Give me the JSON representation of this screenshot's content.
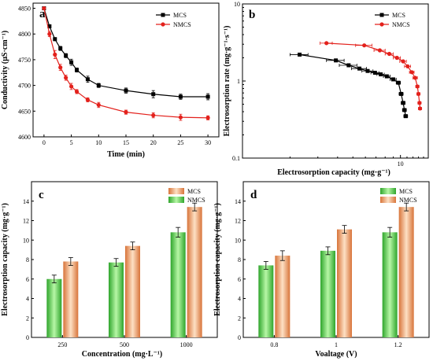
{
  "colors": {
    "mcs": "#000000",
    "nmcs": "#e3211c",
    "green_dark": "#2fa52c",
    "green_light": "#b7f7a6",
    "orange_dark": "#d8743a",
    "orange_light": "#fde0c4"
  },
  "chart_data": [
    {
      "panel": "a",
      "type": "line",
      "xlabel": "Time (min)",
      "ylabel": "Conductivity (μS·cm⁻¹)",
      "xlim": [
        -2,
        32
      ],
      "ylim": [
        4600,
        4860
      ],
      "xticks": [
        "0",
        "5",
        "10",
        "15",
        "20",
        "25",
        "30"
      ],
      "yticks": [
        "4600",
        "4650",
        "4700",
        "4750",
        "4800",
        "4850"
      ],
      "legend_position": "top-right",
      "series": [
        {
          "name": "MCS",
          "color": "#000000",
          "marker": "square",
          "points": [
            [
              0,
              4850
            ],
            [
              1,
              4815
            ],
            [
              2,
              4790
            ],
            [
              3,
              4772
            ],
            [
              4,
              4758
            ],
            [
              5,
              4745
            ],
            [
              6,
              4730
            ],
            [
              8,
              4712
            ],
            [
              10,
              4700
            ],
            [
              15,
              4690
            ],
            [
              20,
              4683
            ],
            [
              25,
              4678
            ],
            [
              30,
              4678
            ]
          ],
          "errors": [
            2,
            3,
            3,
            4,
            4,
            6,
            4,
            6,
            4,
            5,
            7,
            5,
            6
          ]
        },
        {
          "name": "NMCS",
          "color": "#e3211c",
          "marker": "circle",
          "points": [
            [
              0,
              4850
            ],
            [
              1,
              4800
            ],
            [
              2,
              4760
            ],
            [
              3,
              4735
            ],
            [
              4,
              4715
            ],
            [
              5,
              4698
            ],
            [
              6,
              4688
            ],
            [
              8,
              4672
            ],
            [
              10,
              4662
            ],
            [
              15,
              4648
            ],
            [
              20,
              4642
            ],
            [
              25,
              4638
            ],
            [
              30,
              4637
            ]
          ],
          "errors": [
            2,
            5,
            8,
            6,
            5,
            6,
            4,
            4,
            5,
            4,
            5,
            6,
            4
          ]
        }
      ]
    },
    {
      "panel": "b",
      "type": "line",
      "xscale": "log",
      "yscale": "log",
      "xlabel": "Electrosorption capacity (mg·g⁻¹)",
      "ylabel": "Electrosorption rate (mg·g⁻¹·s⁻¹)",
      "xlim": [
        1,
        15
      ],
      "ylim": [
        0.1,
        10
      ],
      "xtick_labels": [
        "10"
      ],
      "ytick_labels": [
        "0.1",
        "1",
        "10"
      ],
      "legend_position": "top-right",
      "series": [
        {
          "name": "MCS",
          "color": "#000000",
          "marker": "square",
          "points": [
            [
              2.3,
              2.2
            ],
            [
              3.9,
              1.85
            ],
            [
              4.7,
              1.6
            ],
            [
              5.5,
              1.45
            ],
            [
              6.2,
              1.35
            ],
            [
              6.9,
              1.28
            ],
            [
              7.5,
              1.22
            ],
            [
              8.2,
              1.15
            ],
            [
              9.0,
              1.05
            ],
            [
              9.7,
              0.95
            ],
            [
              10.1,
              0.68
            ],
            [
              10.4,
              0.52
            ],
            [
              10.6,
              0.42
            ],
            [
              10.8,
              0.35
            ]
          ],
          "xerr": [
            0.3,
            0.5,
            0.6,
            0.6,
            0.5,
            0.4,
            0.4,
            0.4,
            0.4,
            0.3,
            0.3,
            0.3,
            0.3,
            0.3
          ]
        },
        {
          "name": "NMCS",
          "color": "#e3211c",
          "marker": "circle",
          "points": [
            [
              3.4,
              3.1
            ],
            [
              5.9,
              2.9
            ],
            [
              7.4,
              2.5
            ],
            [
              8.5,
              2.25
            ],
            [
              9.5,
              2.0
            ],
            [
              10.4,
              1.8
            ],
            [
              11.1,
              1.55
            ],
            [
              11.8,
              1.3
            ],
            [
              12.4,
              1.1
            ],
            [
              12.8,
              0.85
            ],
            [
              13.0,
              0.68
            ],
            [
              13.2,
              0.52
            ],
            [
              13.3,
              0.44
            ]
          ],
          "xerr": [
            0.3,
            0.7,
            0.6,
            0.5,
            0.5,
            0.5,
            0.5,
            0.4,
            0.4,
            0.3,
            0.3,
            0.3,
            0.3
          ]
        }
      ]
    },
    {
      "panel": "c",
      "type": "bar",
      "xlabel": "Concentration (mg·L⁻¹)",
      "ylabel": "Electrosorption capacity (mg·g⁻¹)",
      "categories": [
        "250",
        "500",
        "1000"
      ],
      "ylim": [
        0,
        16
      ],
      "yticks": [
        "0",
        "2",
        "4",
        "6",
        "8",
        "10",
        "12",
        "14"
      ],
      "legend_position": "top-right",
      "series": [
        {
          "name": "NMCS",
          "style": "green",
          "values": [
            6.0,
            7.7,
            10.8
          ],
          "errors": [
            0.4,
            0.4,
            0.5
          ]
        },
        {
          "name": "MCS",
          "style": "orange",
          "values": [
            7.8,
            9.4,
            13.4
          ],
          "errors": [
            0.4,
            0.4,
            0.4
          ]
        }
      ]
    },
    {
      "panel": "d",
      "type": "bar",
      "xlabel": "Voaltage (V)",
      "ylabel": "Electrosorption capacity (mg·g⁻¹)",
      "categories": [
        "0.8",
        "1",
        "1.2"
      ],
      "ylim": [
        0,
        16
      ],
      "yticks": [
        "0",
        "2",
        "4",
        "6",
        "8",
        "10",
        "12",
        "14"
      ],
      "legend_position": "top-right",
      "series": [
        {
          "name": "MCS",
          "style": "green",
          "values": [
            7.4,
            8.9,
            10.8
          ],
          "errors": [
            0.4,
            0.4,
            0.5
          ]
        },
        {
          "name": "NMCS",
          "style": "orange",
          "values": [
            8.4,
            11.1,
            13.4
          ],
          "errors": [
            0.5,
            0.4,
            0.4
          ]
        }
      ]
    }
  ]
}
